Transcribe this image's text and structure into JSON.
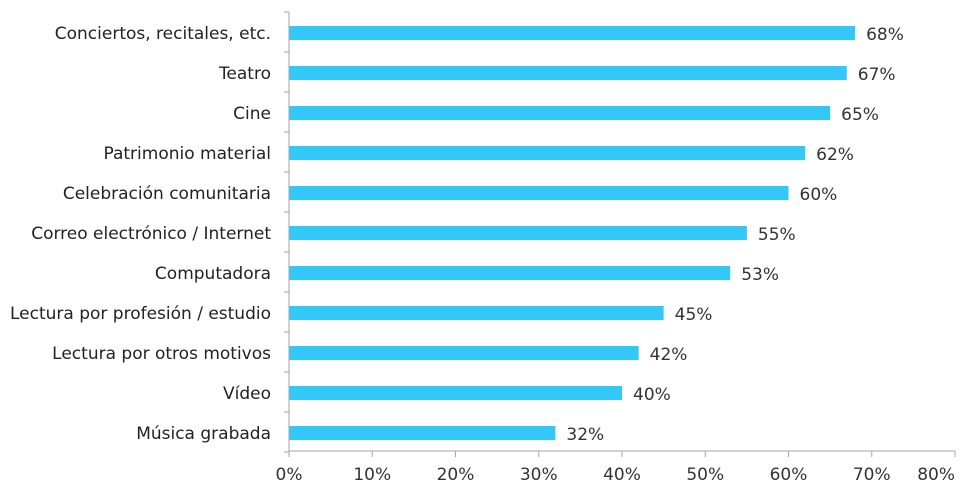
{
  "chart_data": {
    "type": "bar",
    "orientation": "horizontal",
    "categories": [
      "Conciertos, recitales, etc.",
      "Teatro",
      "Cine",
      "Patrimonio material",
      "Celebración comunitaria",
      "Correo electrónico / Internet",
      "Computadora",
      "Lectura por profesión / estudio",
      "Lectura por otros motivos",
      "Vídeo",
      "Música grabada"
    ],
    "values": [
      68,
      67,
      65,
      62,
      60,
      55,
      53,
      45,
      42,
      40,
      32
    ],
    "value_labels": [
      "68%",
      "67%",
      "65%",
      "62%",
      "60%",
      "55%",
      "53%",
      "45%",
      "42%",
      "40%",
      "32%"
    ],
    "xlim": [
      0,
      80
    ],
    "x_ticks": [
      0,
      10,
      20,
      30,
      40,
      50,
      60,
      70,
      80
    ],
    "x_tick_labels": [
      "0%",
      "10%",
      "20%",
      "30%",
      "40%",
      "50%",
      "60%",
      "70%",
      "80%"
    ],
    "title": "",
    "xlabel": "",
    "ylabel": "",
    "grid": false,
    "legend": "none",
    "bar_color": "#33c8f8",
    "axis_color": "#a6a6a6"
  }
}
